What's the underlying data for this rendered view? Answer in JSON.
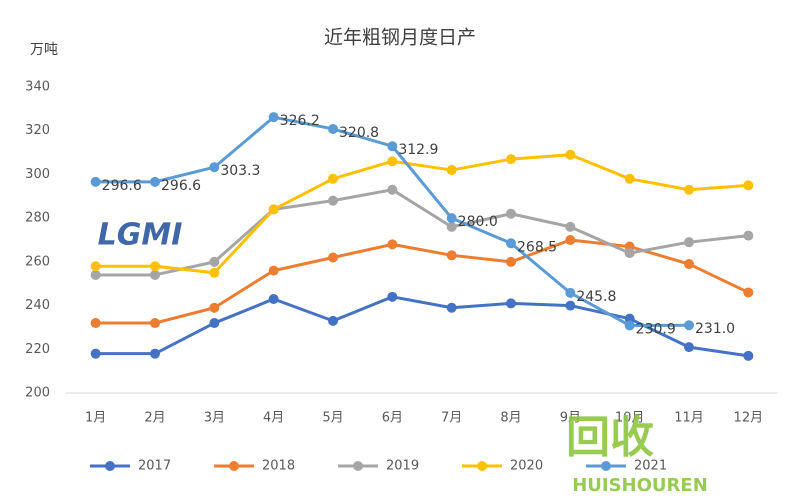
{
  "chart_data": {
    "type": "line",
    "title": "近年粗钢月度日产",
    "y_label": "万吨",
    "categories": [
      "1月",
      "2月",
      "3月",
      "4月",
      "5月",
      "6月",
      "7月",
      "8月",
      "9月",
      "10月",
      "11月",
      "12月"
    ],
    "series": [
      {
        "name": "2017",
        "color": "#4472c4",
        "values": [
          218,
          218,
          232,
          243,
          233,
          244,
          239,
          241,
          240,
          234,
          221,
          217
        ]
      },
      {
        "name": "2018",
        "color": "#ed7d31",
        "values": [
          232,
          232,
          239,
          256,
          262,
          268,
          263,
          260,
          270,
          267,
          259,
          246
        ]
      },
      {
        "name": "2019",
        "color": "#a5a5a5",
        "values": [
          254,
          254,
          260,
          284,
          288,
          293,
          276,
          282,
          276,
          264,
          269,
          272
        ]
      },
      {
        "name": "2020",
        "color": "#ffc000",
        "values": [
          258,
          258,
          255,
          284,
          298,
          306,
          302,
          307,
          309,
          298,
          293,
          295
        ]
      },
      {
        "name": "2021",
        "color": "#5b9bd5",
        "values": [
          296.6,
          296.6,
          303.3,
          326.2,
          320.8,
          312.9,
          280,
          268.5,
          245.8,
          230.9,
          231,
          null
        ],
        "value_labels": [
          "296.6",
          "296.6",
          "303.3",
          "326.2",
          "320.8",
          "312.9",
          "280.0",
          "268.5",
          "245.8",
          "230.9",
          "231.0",
          null
        ]
      }
    ],
    "ylim": [
      200,
      340
    ],
    "yticks": [
      200,
      220,
      240,
      260,
      280,
      300,
      320,
      340
    ],
    "grid": false,
    "legend": "bottom",
    "annotations": [
      "LGMI",
      "回收",
      "HUISHOUREN"
    ]
  }
}
